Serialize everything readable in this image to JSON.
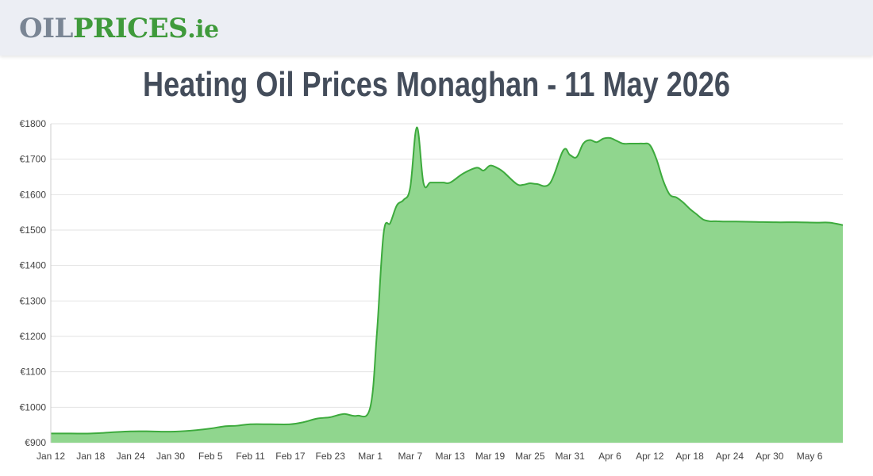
{
  "header": {
    "logo_part1": "OIL",
    "logo_part2": "PRICES",
    "logo_part3": ".ie"
  },
  "page": {
    "title": "Heating Oil Prices Monaghan - 11 May 2026"
  },
  "colors": {
    "line": "#3daa3d",
    "fill": "#90d68e",
    "grid": "#e3e3e3",
    "title": "#444d5b",
    "header_bg": "#eceef4"
  },
  "chart_data": {
    "type": "area",
    "title": "Heating Oil Prices Monaghan - 11 May 2026",
    "xlabel": "",
    "ylabel": "",
    "ylim": [
      900,
      1800
    ],
    "yticks": [
      "€900",
      "€1000",
      "€1100",
      "€1200",
      "€1300",
      "€1400",
      "€1500",
      "€1600",
      "€1700",
      "€1800"
    ],
    "xticks": [
      "Jan 12",
      "Jan 18",
      "Jan 24",
      "Jan 30",
      "Feb 5",
      "Feb 11",
      "Feb 17",
      "Feb 23",
      "Mar 1",
      "Mar 7",
      "Mar 13",
      "Mar 19",
      "Mar 25",
      "Mar 31",
      "Apr 6",
      "Apr 12",
      "Apr 18",
      "Apr 24",
      "Apr 30",
      "May 6"
    ],
    "grid": true,
    "legend": "none",
    "series": [
      {
        "x": [
          "Jan 12",
          "Jan 15",
          "Jan 18",
          "Jan 21",
          "Jan 24",
          "Jan 27",
          "Jan 30",
          "Feb 2",
          "Feb 5",
          "Feb 7",
          "Feb 9",
          "Feb 11",
          "Feb 14",
          "Feb 17",
          "Feb 19",
          "Feb 21",
          "Feb 23",
          "Feb 25",
          "Feb 27",
          "Mar 1",
          "Mar 2",
          "Mar 3",
          "Mar 4",
          "Mar 5",
          "Mar 6",
          "Mar 7",
          "Mar 8",
          "Mar 9",
          "Mar 10",
          "Mar 11",
          "Mar 12",
          "Mar 13",
          "Mar 15",
          "Mar 17",
          "Mar 18",
          "Mar 19",
          "Mar 20",
          "Mar 21",
          "Mar 23",
          "Mar 24",
          "Mar 25",
          "Mar 26",
          "Mar 28",
          "Mar 30",
          "Mar 31",
          "Apr 1",
          "Apr 2",
          "Apr 3",
          "Apr 4",
          "Apr 5",
          "Apr 6",
          "Apr 7",
          "Apr 8",
          "Apr 9",
          "Apr 10",
          "Apr 11",
          "Apr 12",
          "Apr 13",
          "Apr 14",
          "Apr 15",
          "Apr 16",
          "Apr 17",
          "Apr 18",
          "Apr 19",
          "Apr 20",
          "Apr 21",
          "Apr 22",
          "Apr 23",
          "Apr 25",
          "Apr 28",
          "May 1",
          "May 4",
          "May 7",
          "May 9",
          "May 11"
        ],
        "values": [
          926,
          926,
          926,
          929,
          932,
          932,
          931,
          934,
          940,
          946,
          948,
          952,
          952,
          952,
          958,
          968,
          972,
          981,
          976,
          1000,
          1210,
          1490,
          1520,
          1570,
          1585,
          1620,
          1790,
          1632,
          1634,
          1634,
          1634,
          1634,
          1660,
          1676,
          1668,
          1682,
          1676,
          1664,
          1630,
          1628,
          1632,
          1630,
          1632,
          1725,
          1712,
          1706,
          1744,
          1754,
          1748,
          1758,
          1760,
          1752,
          1744,
          1744,
          1744,
          1744,
          1740,
          1700,
          1640,
          1600,
          1592,
          1578,
          1560,
          1545,
          1530,
          1525,
          1525,
          1524,
          1524,
          1523,
          1522,
          1522,
          1521,
          1521,
          1514
        ]
      }
    ]
  }
}
